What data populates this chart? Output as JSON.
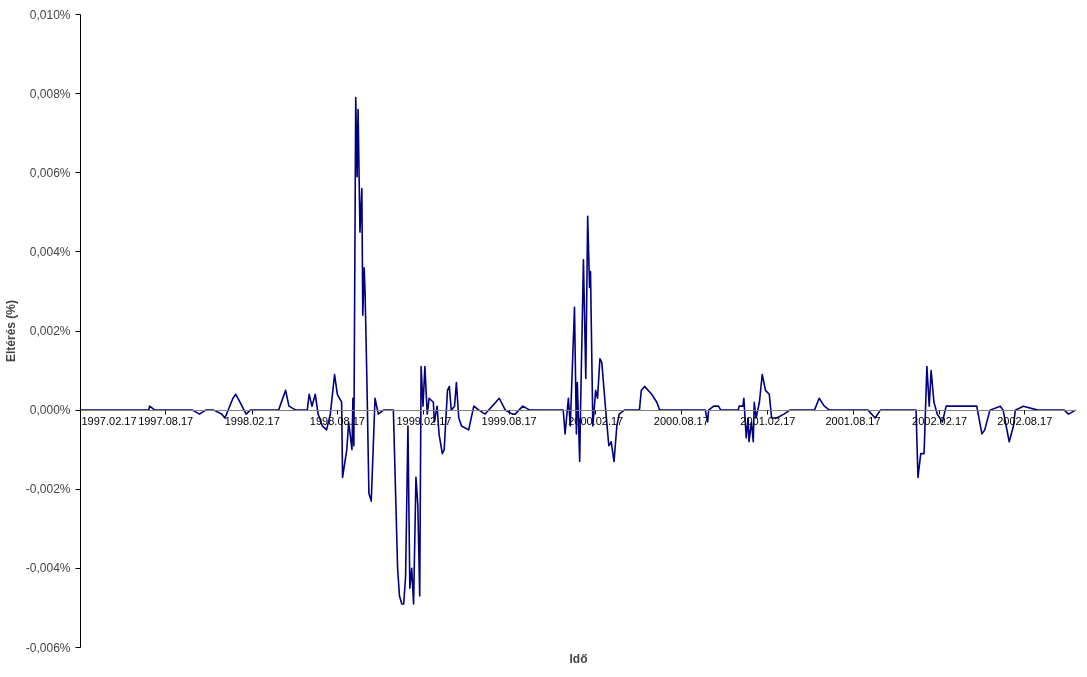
{
  "chart_data": {
    "type": "line",
    "xlabel": "Idő",
    "ylabel": "Eltérés (%)",
    "xlim": [
      "1997-02-17",
      "2002-12-05"
    ],
    "xticks": [
      {
        "value": "1997-02-17",
        "label": "1997.02.17"
      },
      {
        "value": "1997-08-17",
        "label": "1997.08.17"
      },
      {
        "value": "1998-02-17",
        "label": "1998.02.17"
      },
      {
        "value": "1998-08-17",
        "label": "1998.08.17"
      },
      {
        "value": "1999-02-17",
        "label": "1999.02.17"
      },
      {
        "value": "1999-08-17",
        "label": "1999.08.17"
      },
      {
        "value": "2000-02-17",
        "label": "2000.02.17"
      },
      {
        "value": "2000-08-17",
        "label": "2000.08.17"
      },
      {
        "value": "2001-02-17",
        "label": "2001.02.17"
      },
      {
        "value": "2001-08-17",
        "label": "2001.08.17"
      },
      {
        "value": "2002-02-17",
        "label": "2002.02.17"
      },
      {
        "value": "2002-08-17",
        "label": "2002.08.17"
      }
    ],
    "ylim": [
      -0.006,
      0.01
    ],
    "yticks": [
      {
        "value": -0.006,
        "label": "-0,006%"
      },
      {
        "value": -0.004,
        "label": "-0,004%"
      },
      {
        "value": -0.002,
        "label": "-0,002%"
      },
      {
        "value": 0,
        "label": "0,000%"
      },
      {
        "value": 0.002,
        "label": "0,002%"
      },
      {
        "value": 0.004,
        "label": "0,004%"
      },
      {
        "value": 0.006,
        "label": "0,006%"
      },
      {
        "value": 0.008,
        "label": "0,008%"
      },
      {
        "value": 0.01,
        "label": "0,010%"
      }
    ],
    "grid": false,
    "marker": "none",
    "line_style": "solid",
    "series": [
      {
        "color": "#000080",
        "x": [
          "1997-02-17",
          "1997-07-12",
          "1997-07-14",
          "1997-07-25",
          "1997-08-02",
          "1997-09-10",
          "1997-09-23",
          "1997-10-13",
          "1997-10-28",
          "1997-11-10",
          "1997-11-27",
          "1997-12-14",
          "1997-12-21",
          "1998-01-07",
          "1998-01-13",
          "1998-01-22",
          "1998-02-04",
          "1998-02-13",
          "1998-03-13",
          "1998-04-14",
          "1998-04-29",
          "1998-05-06",
          "1998-05-21",
          "1998-06-14",
          "1998-06-18",
          "1998-06-24",
          "1998-07-01",
          "1998-07-07",
          "1998-07-16",
          "1998-07-25",
          "1998-08-02",
          "1998-08-11",
          "1998-08-17",
          "1998-08-26",
          "1998-08-28",
          "1998-09-06",
          "1998-09-10",
          "1998-09-17",
          "1998-09-19",
          "1998-09-21",
          "1998-09-25",
          "1998-09-28",
          "1998-09-30",
          "1998-10-04",
          "1998-10-08",
          "1998-10-10",
          "1998-10-13",
          "1998-10-15",
          "1998-10-19",
          "1998-10-23",
          "1998-10-28",
          "1998-11-01",
          "1998-11-05",
          "1998-11-12",
          "1998-11-23",
          "1998-12-14",
          "1998-12-23",
          "1998-12-27",
          "1999-01-01",
          "1999-01-05",
          "1999-01-09",
          "1999-01-14",
          "1999-01-18",
          "1999-01-22",
          "1999-01-26",
          "1999-01-31",
          "1999-02-04",
          "1999-02-08",
          "1999-02-11",
          "1999-02-15",
          "1999-02-19",
          "1999-02-24",
          "1999-02-28",
          "1999-03-09",
          "1999-03-11",
          "1999-03-17",
          "1999-03-21",
          "1999-03-28",
          "1999-04-01",
          "1999-04-08",
          "1999-04-12",
          "1999-04-16",
          "1999-04-23",
          "1999-04-27",
          "1999-05-02",
          "1999-05-08",
          "1999-05-23",
          "1999-06-03",
          "1999-06-14",
          "1999-06-27",
          "1999-07-12",
          "1999-07-27",
          "1999-08-09",
          "1999-08-24",
          "1999-08-30",
          "1999-09-15",
          "1999-09-30",
          "1999-10-28",
          "1999-12-10",
          "1999-12-14",
          "1999-12-21",
          "1999-12-25",
          "2000-01-03",
          "2000-01-07",
          "2000-01-09",
          "2000-01-14",
          "2000-01-16",
          "2000-01-22",
          "2000-01-27",
          "2000-01-31",
          "2000-02-04",
          "2000-02-06",
          "2000-02-11",
          "2000-02-17",
          "2000-02-21",
          "2000-02-26",
          "2000-03-01",
          "2000-03-10",
          "2000-03-16",
          "2000-03-21",
          "2000-03-27",
          "2000-04-02",
          "2000-04-07",
          "2000-04-18",
          "2000-04-22",
          "2000-05-20",
          "2000-05-24",
          "2000-05-31",
          "2000-06-15",
          "2000-06-26",
          "2000-07-02",
          "2000-07-28",
          "2000-10-07",
          "2000-10-12",
          "2000-10-14",
          "2000-10-25",
          "2000-11-04",
          "2000-11-09",
          "2000-12-16",
          "2000-12-18",
          "2000-12-26",
          "2000-12-28",
          "2001-01-02",
          "2001-01-06",
          "2001-01-08",
          "2001-01-13",
          "2001-01-17",
          "2001-01-19",
          "2001-01-23",
          "2001-01-30",
          "2001-02-05",
          "2001-02-12",
          "2001-02-20",
          "2001-02-25",
          "2001-03-08",
          "2001-03-23",
          "2001-04-05",
          "2001-04-26",
          "2001-05-27",
          "2001-06-06",
          "2001-06-17",
          "2001-06-28",
          "2001-08-06",
          "2001-09-18",
          "2001-10-03",
          "2001-10-14",
          "2001-12-29",
          "2002-01-02",
          "2002-01-08",
          "2002-01-15",
          "2002-01-21",
          "2002-01-26",
          "2002-01-30",
          "2002-02-05",
          "2002-02-12",
          "2002-02-23",
          "2002-03-03",
          "2002-03-25",
          "2002-04-22",
          "2002-05-07",
          "2002-05-18",
          "2002-05-24",
          "2002-06-04",
          "2002-06-26",
          "2002-07-02",
          "2002-07-15",
          "2002-07-24",
          "2002-07-28",
          "2002-08-14",
          "2002-09-14",
          "2002-10-12",
          "2002-11-09",
          "2002-11-18",
          "2002-12-03"
        ],
        "values": [
          0,
          0,
          0.0001,
          0,
          0,
          0,
          0,
          0,
          -0.0001,
          0,
          0,
          -0.0001,
          -0.0002,
          0.0003,
          0.0004,
          0.0002,
          -0.0001,
          0,
          0,
          0,
          0.0005,
          0.0001,
          0,
          0,
          0.0004,
          0.0001,
          0.0004,
          -0.0001,
          -0.0004,
          -0.0005,
          -0.0001,
          0.0009,
          0.0004,
          0.0002,
          -0.0017,
          -0.001,
          -0.0003,
          -0.001,
          0.0003,
          -0.0009,
          0.0079,
          0.0059,
          0.0076,
          0.0045,
          0.0056,
          0.0024,
          0.0036,
          0.0029,
          0.0006,
          -0.0021,
          -0.0023,
          -0.001,
          0.0003,
          -0.0001,
          0,
          0,
          -0.004,
          -0.0047,
          -0.0049,
          -0.0049,
          -0.0042,
          -0.0004,
          -0.0045,
          -0.004,
          -0.0049,
          -0.0017,
          -0.0024,
          -0.0047,
          0.0011,
          0.0001,
          0.0011,
          -0.0001,
          0.0003,
          0.0002,
          -0.0003,
          0.0001,
          -0.0006,
          -0.0011,
          -0.001,
          0.0005,
          0.0006,
          0,
          0.0001,
          0.0007,
          -0.0002,
          -0.0004,
          -0.0005,
          0.0001,
          0,
          -0.0001,
          0.0001,
          0.0003,
          0,
          -0.0001,
          -0.0001,
          0.0001,
          0,
          0,
          0,
          -0.0006,
          0.0003,
          -0.0004,
          0.0026,
          -0.0006,
          0.0007,
          -0.0013,
          0.0001,
          0.0038,
          0.0008,
          0.0049,
          0.0031,
          0.0035,
          -0.0004,
          0.0005,
          0.0003,
          0.0013,
          0.0012,
          -0.0001,
          -0.0009,
          -0.0008,
          -0.0013,
          -0.0004,
          -0.0001,
          0,
          0,
          0,
          0.0005,
          0.0006,
          0.0004,
          0.0002,
          0,
          0,
          0,
          -0.0003,
          0,
          0.0001,
          0.0001,
          0,
          0,
          0.0001,
          0.0001,
          0.0003,
          -0.0007,
          -0.0002,
          -0.0008,
          -0.0003,
          -0.0008,
          0.0002,
          -0.0002,
          0.0002,
          0.0009,
          0.0005,
          0.0004,
          -0.0002,
          -0.0002,
          -0.0001,
          0,
          0,
          0,
          0.0003,
          0.0001,
          0,
          0,
          0,
          -0.0002,
          0,
          0,
          -0.0017,
          -0.0011,
          -0.0011,
          0.0011,
          0.0001,
          0.001,
          0.0002,
          -0.0001,
          -0.0003,
          0.0001,
          0.0001,
          0.0001,
          0.0001,
          -0.0006,
          -0.0005,
          0,
          0.0001,
          0,
          -0.0008,
          -0.0004,
          0,
          0.0001,
          0,
          0,
          0,
          -0.0001,
          0
        ]
      }
    ]
  }
}
